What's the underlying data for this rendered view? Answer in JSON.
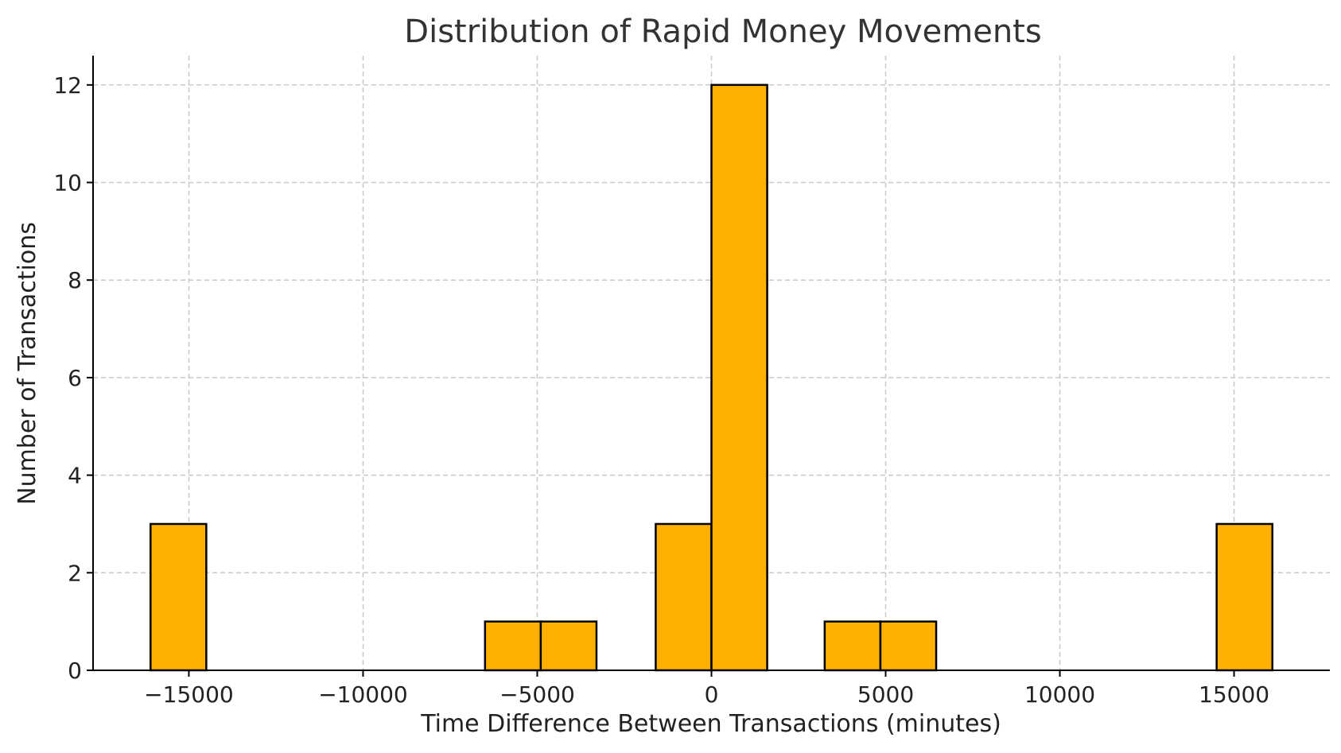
{
  "chart_data": {
    "type": "bar",
    "title": "Distribution of Rapid Money Movements",
    "xlabel": "Time Difference Between Transactions (minutes)",
    "ylabel": "Number of Transactions",
    "xlim": [
      -17750,
      17750
    ],
    "ylim": [
      0,
      12.6
    ],
    "xticks": [
      -15000,
      -10000,
      -5000,
      0,
      5000,
      10000,
      15000
    ],
    "xtick_labels": [
      "−15000",
      "−10000",
      "−5000",
      "0",
      "5000",
      "10000",
      "15000"
    ],
    "yticks": [
      0,
      2,
      4,
      6,
      8,
      10,
      12
    ],
    "ytick_labels": [
      "0",
      "2",
      "4",
      "6",
      "8",
      "10",
      "12"
    ],
    "grid": true,
    "bins": [
      {
        "x0": -16100,
        "x1": -14500,
        "count": 3
      },
      {
        "x0": -6500,
        "x1": -4900,
        "count": 1
      },
      {
        "x0": -4900,
        "x1": -3300,
        "count": 1
      },
      {
        "x0": -1600,
        "x1": 0,
        "count": 3
      },
      {
        "x0": 0,
        "x1": 1600,
        "count": 12
      },
      {
        "x0": 3250,
        "x1": 4850,
        "count": 1
      },
      {
        "x0": 4850,
        "x1": 6450,
        "count": 1
      },
      {
        "x0": 14500,
        "x1": 16100,
        "count": 3
      }
    ],
    "colors": {
      "bar": "#ffb000",
      "edge": "#000000",
      "grid": "#c8c8c8"
    }
  }
}
